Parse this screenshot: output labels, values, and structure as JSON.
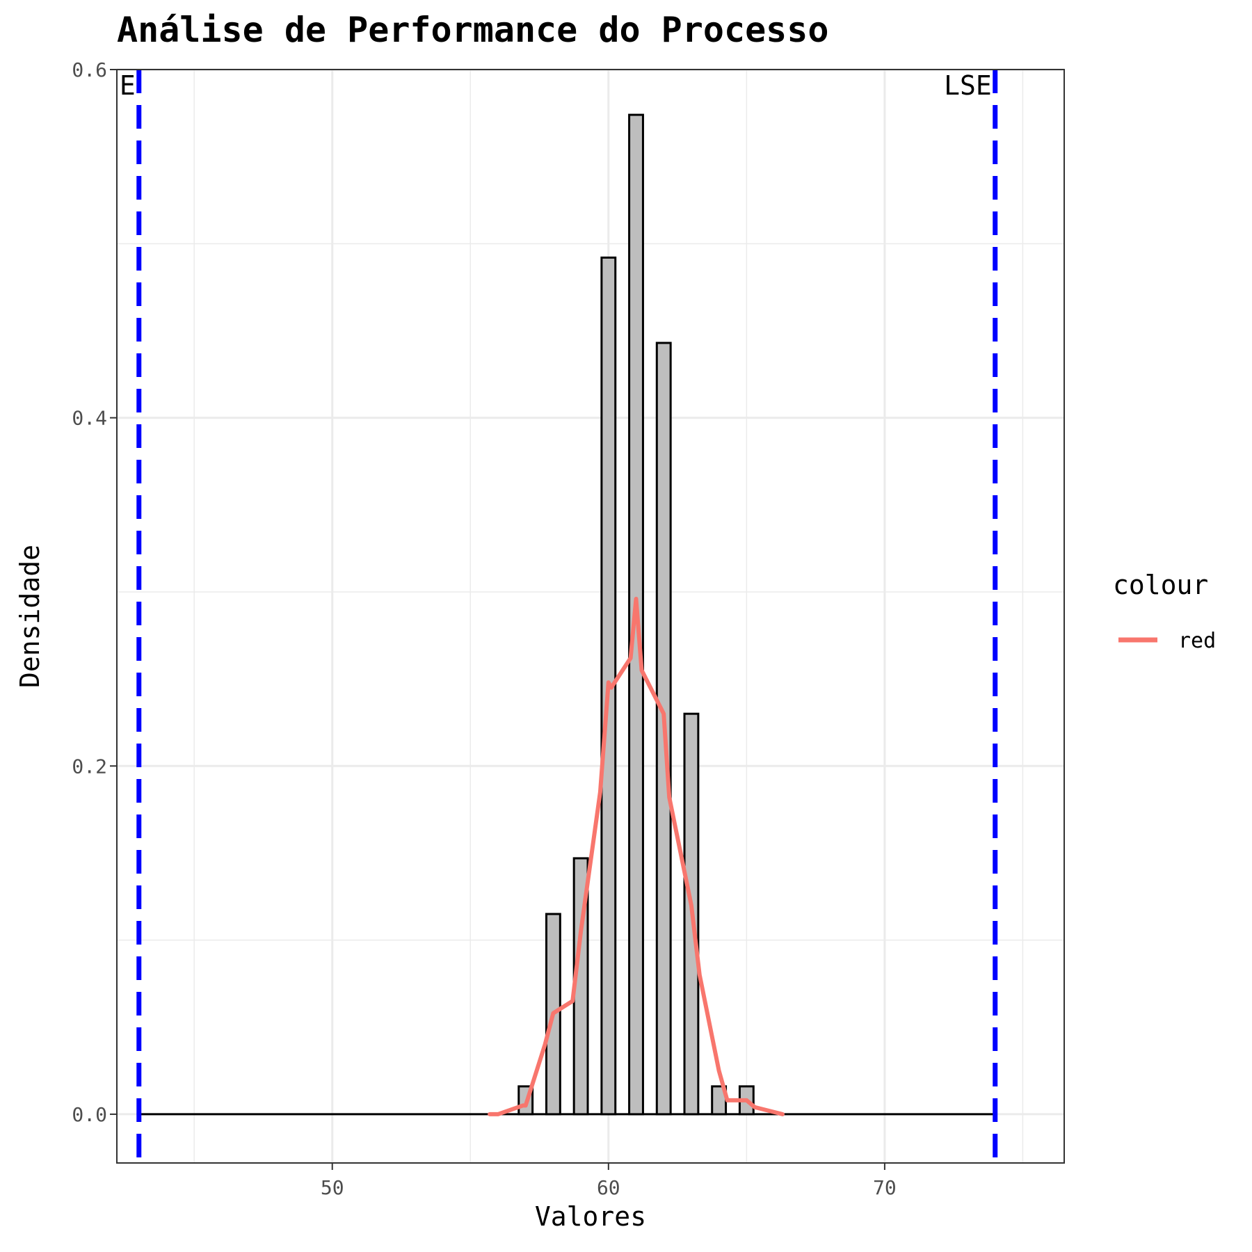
{
  "chart_data": {
    "type": "bar",
    "title": "Análise de Performance do Processo",
    "xlabel": "Valores",
    "ylabel": "Densidade",
    "xlim": [
      42.2,
      76.5
    ],
    "ylim": [
      -0.028,
      0.6
    ],
    "x_ticks": [
      50,
      60,
      70
    ],
    "y_ticks": [
      0.0,
      0.2,
      0.4,
      0.6
    ],
    "x_tick_labels": [
      "50",
      "60",
      "70"
    ],
    "y_tick_labels": [
      "0.0",
      "0.2",
      "0.4",
      "0.6"
    ],
    "grid": true,
    "bin_width": 0.5,
    "histogram": {
      "bin_centers": [
        57,
        58,
        59,
        60,
        61,
        62,
        63,
        64,
        65
      ],
      "densities": [
        0.016,
        0.115,
        0.147,
        0.492,
        0.574,
        0.443,
        0.23,
        0.016,
        0.016
      ],
      "fill": "#bebebe",
      "outline": "#000000",
      "baseline_x_range": [
        43,
        74
      ]
    },
    "density_curve": {
      "x": [
        55.7,
        56.0,
        56.9,
        57.0,
        57.7,
        58.0,
        58.7,
        59.0,
        59.7,
        60.0,
        60.1,
        60.8,
        61.0,
        61.2,
        62.0,
        62.2,
        63.0,
        63.3,
        64.0,
        64.3,
        65.0,
        65.3,
        66.3
      ],
      "y": [
        0.0,
        0.0,
        0.005,
        0.005,
        0.04,
        0.058,
        0.065,
        0.105,
        0.185,
        0.248,
        0.245,
        0.262,
        0.296,
        0.255,
        0.23,
        0.182,
        0.12,
        0.08,
        0.025,
        0.008,
        0.008,
        0.004,
        0.0
      ],
      "color": "#f8766d"
    },
    "spec_limits": [
      {
        "label": "LIE",
        "value": 43.0,
        "color": "#0000ff"
      },
      {
        "label": "LSE",
        "value": 74.0,
        "color": "#0000ff"
      }
    ],
    "legend": {
      "position": "right",
      "title": "colour",
      "entries": [
        {
          "label": "red",
          "color": "#f8766d"
        }
      ]
    }
  }
}
